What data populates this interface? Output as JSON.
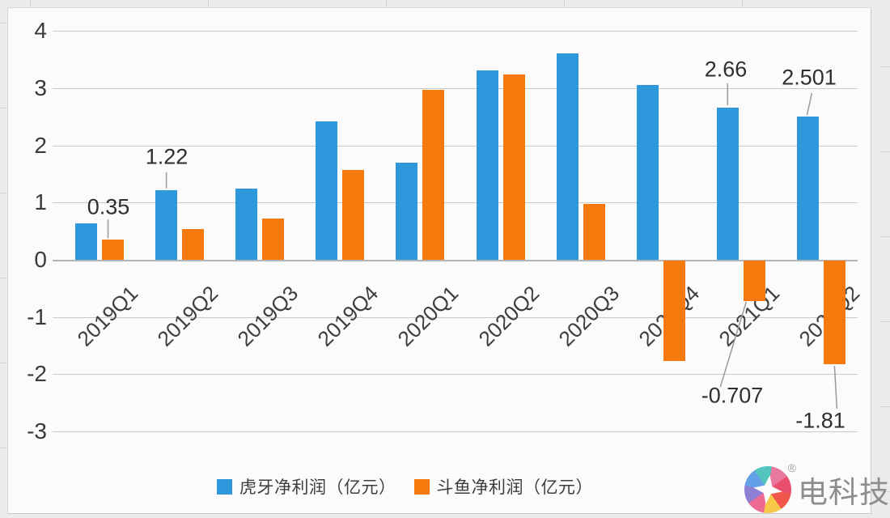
{
  "chart_data": {
    "type": "bar",
    "title": "",
    "categories": [
      "2019Q1",
      "2019Q2",
      "2019Q3",
      "2019Q4",
      "2020Q1",
      "2020Q2",
      "2020Q3",
      "2020Q4",
      "2021Q1",
      "2021Q2"
    ],
    "series": [
      {
        "name": "虎牙净利润（亿元）",
        "color": "#2F97DC",
        "values": [
          0.63,
          1.22,
          1.24,
          2.42,
          1.7,
          3.31,
          3.61,
          3.05,
          2.66,
          2.501
        ]
      },
      {
        "name": "斗鱼净利润（亿元）",
        "color": "#F5790D",
        "values": [
          0.35,
          0.54,
          0.72,
          1.57,
          2.97,
          3.24,
          0.98,
          -1.76,
          -0.707,
          -1.81
        ]
      }
    ],
    "ylabel": "",
    "xlabel": "",
    "ylim": [
      -3,
      4
    ],
    "yticks": [
      4,
      3,
      2,
      1,
      0,
      -1,
      -2,
      -3
    ],
    "grid": "horizontal",
    "legend_position": "bottom",
    "annotations": [
      {
        "series": 1,
        "index": 0,
        "text": "0.35",
        "placement": "above"
      },
      {
        "series": 0,
        "index": 1,
        "text": "1.22",
        "placement": "above"
      },
      {
        "series": 0,
        "index": 8,
        "text": "2.66",
        "placement": "above"
      },
      {
        "series": 0,
        "index": 9,
        "text": "2.501",
        "placement": "above"
      },
      {
        "series": 1,
        "index": 8,
        "text": "-0.707",
        "placement": "below"
      },
      {
        "series": 1,
        "index": 9,
        "text": "-1.81",
        "placement": "below"
      }
    ]
  },
  "legend": {
    "items": [
      {
        "label": "虎牙净利润（亿元）",
        "color": "#2F97DC"
      },
      {
        "label": "斗鱼净利润（亿元）",
        "color": "#F5790D"
      }
    ]
  },
  "watermark": {
    "text": "电科技",
    "registered": "®"
  },
  "colors": {
    "huya_blue": "#2F97DC",
    "douyu_orange": "#F5790D",
    "gridline": "#c9c9c9",
    "background": "#ebebeb",
    "plot_background": "#fbfbfb",
    "leader_line": "#9a9a9a"
  }
}
